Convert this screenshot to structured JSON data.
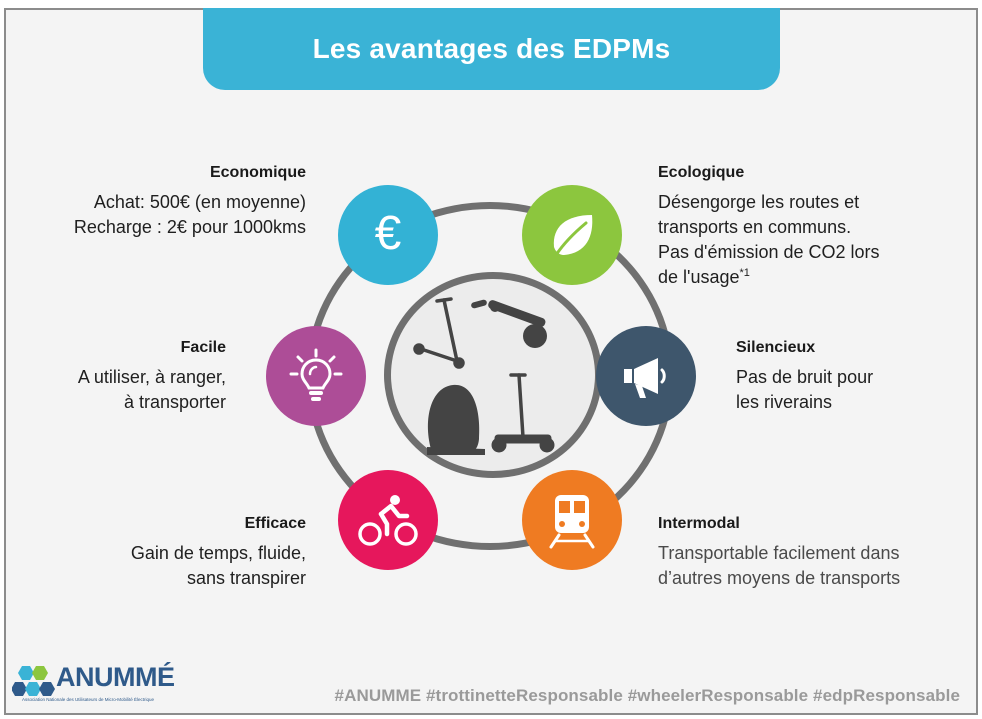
{
  "title": "Les avantages des EDPMs",
  "benefits": {
    "economique": {
      "heading": "Economique",
      "lines": [
        "Achat: 500€ (en moyenne)",
        "Recharge : 2€ pour 1000kms"
      ],
      "icon": "euro-icon",
      "icon_glyph": "€",
      "color": "#33b2d5"
    },
    "ecologique": {
      "heading": "Ecologique",
      "lines": [
        "Désengorge les routes et",
        "transports en communs.",
        "Pas d'émission de CO2 lors",
        "de l'usage"
      ],
      "footnote": "*1",
      "icon": "leaf-icon",
      "color": "#8cc63e"
    },
    "facile": {
      "heading": "Facile",
      "lines": [
        "A utiliser, à ranger,",
        "à transporter"
      ],
      "icon": "lightbulb-icon",
      "color": "#ad4d97"
    },
    "silencieux": {
      "heading": "Silencieux",
      "lines": [
        "Pas de bruit pour",
        "les riverains"
      ],
      "icon": "megaphone-icon",
      "color": "#3e566c"
    },
    "efficace": {
      "heading": "Efficace",
      "lines": [
        "Gain de temps, fluide,",
        "sans transpirer"
      ],
      "icon": "cyclist-icon",
      "color": "#e6175c"
    },
    "intermodal": {
      "heading": "Intermodal",
      "lines": [
        "Transportable facilement dans",
        "d’autres moyens de transports"
      ],
      "icon": "train-icon",
      "color": "#ef7b22"
    }
  },
  "center_icons": [
    "scooter-icon",
    "electric-skateboard-icon",
    "monowheel-icon",
    "segway-icon"
  ],
  "hashtags": "#ANUMME #trottinetteResponsable #wheelerResponsable #edpResponsable",
  "logo": {
    "name": "ANUMMÉ",
    "subtitle": "Association Nationale des Utilisateurs de Micro-Mobilité Électrique"
  }
}
